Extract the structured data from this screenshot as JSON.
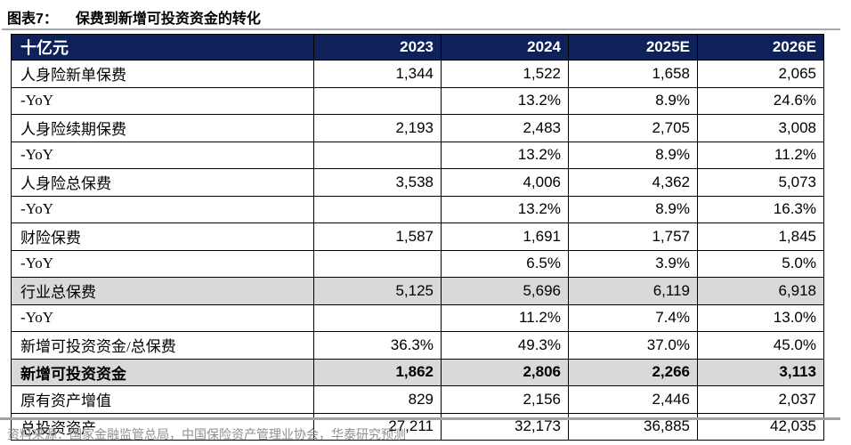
{
  "title": {
    "prefix": "图表7：",
    "text": "保费到新增可投资资金的转化"
  },
  "table": {
    "unit_label": "十亿元",
    "columns": [
      "2023",
      "2024",
      "2025E",
      "2026E"
    ],
    "rows": [
      {
        "label": "人身险新单保费",
        "values": [
          "1,344",
          "1,522",
          "1,658",
          "2,065"
        ],
        "style": "normal"
      },
      {
        "label": "-YoY",
        "values": [
          "",
          "13.2%",
          "8.9%",
          "24.6%"
        ],
        "style": "normal"
      },
      {
        "label": "人身险续期保费",
        "values": [
          "2,193",
          "2,483",
          "2,705",
          "3,008"
        ],
        "style": "normal"
      },
      {
        "label": "-YoY",
        "values": [
          "",
          "13.2%",
          "8.9%",
          "11.2%"
        ],
        "style": "normal"
      },
      {
        "label": "人身险总保费",
        "values": [
          "3,538",
          "4,006",
          "4,362",
          "5,073"
        ],
        "style": "normal"
      },
      {
        "label": "-YoY",
        "values": [
          "",
          "13.2%",
          "8.9%",
          "16.3%"
        ],
        "style": "normal"
      },
      {
        "label": "财险保费",
        "values": [
          "1,587",
          "1,691",
          "1,757",
          "1,845"
        ],
        "style": "normal"
      },
      {
        "label": "-YoY",
        "values": [
          "",
          "6.5%",
          "3.9%",
          "5.0%"
        ],
        "style": "normal"
      },
      {
        "label": "行业总保费",
        "values": [
          "5,125",
          "5,696",
          "6,119",
          "6,918"
        ],
        "style": "shaded"
      },
      {
        "label": "-YoY",
        "values": [
          "",
          "11.2%",
          "7.4%",
          "13.0%"
        ],
        "style": "normal"
      },
      {
        "label": "新增可投资资金/总保费",
        "values": [
          "36.3%",
          "49.3%",
          "37.0%",
          "45.0%"
        ],
        "style": "normal"
      },
      {
        "label": "新增可投资资金",
        "values": [
          "1,862",
          "2,806",
          "2,266",
          "3,113"
        ],
        "style": "shaded-bold"
      },
      {
        "label": "原有资产增值",
        "values": [
          "829",
          "2,156",
          "2,446",
          "2,037"
        ],
        "style": "normal"
      },
      {
        "label": "总投资资产",
        "values": [
          "27,211",
          "32,173",
          "36,885",
          "42,035"
        ],
        "style": "normal"
      }
    ]
  },
  "footer": {
    "source": "资料来源：国家金融监管总局，中国保险资产管理业协会，华泰研究预测"
  },
  "colors": {
    "header_bg": "#0e2259",
    "header_text": "#ffffff",
    "shaded_row": "#d9d9d9",
    "border": "#000000",
    "title_underline": "#a8a8a8",
    "bottom_rule": "#9aa5a3",
    "source_text": "#8f8f8f"
  },
  "chart_data": {
    "type": "table",
    "title": "图表7：保费到新增可投资资金的转化",
    "unit": "十亿元",
    "columns": [
      "十亿元",
      "2023",
      "2024",
      "2025E",
      "2026E"
    ],
    "rows": [
      [
        "人身险新单保费",
        "1,344",
        "1,522",
        "1,658",
        "2,065"
      ],
      [
        "-YoY",
        "",
        "13.2%",
        "8.9%",
        "24.6%"
      ],
      [
        "人身险续期保费",
        "2,193",
        "2,483",
        "2,705",
        "3,008"
      ],
      [
        "-YoY",
        "",
        "13.2%",
        "8.9%",
        "11.2%"
      ],
      [
        "人身险总保费",
        "3,538",
        "4,006",
        "4,362",
        "5,073"
      ],
      [
        "-YoY",
        "",
        "13.2%",
        "8.9%",
        "16.3%"
      ],
      [
        "财险保费",
        "1,587",
        "1,691",
        "1,757",
        "1,845"
      ],
      [
        "-YoY",
        "",
        "6.5%",
        "3.9%",
        "5.0%"
      ],
      [
        "行业总保费",
        "5,125",
        "5,696",
        "6,119",
        "6,918"
      ],
      [
        "-YoY",
        "",
        "11.2%",
        "7.4%",
        "13.0%"
      ],
      [
        "新增可投资资金/总保费",
        "36.3%",
        "49.3%",
        "37.0%",
        "45.0%"
      ],
      [
        "新增可投资资金",
        "1,862",
        "2,806",
        "2,266",
        "3,113"
      ],
      [
        "原有资产增值",
        "829",
        "2,156",
        "2,446",
        "2,037"
      ],
      [
        "总投资资产",
        "27,211",
        "32,173",
        "36,885",
        "42,035"
      ]
    ],
    "highlighted_rows": [
      "行业总保费",
      "新增可投资资金"
    ],
    "source_note": "资料来源：国家金融监管总局，中国保险资产管理业协会，华泰研究预测"
  }
}
